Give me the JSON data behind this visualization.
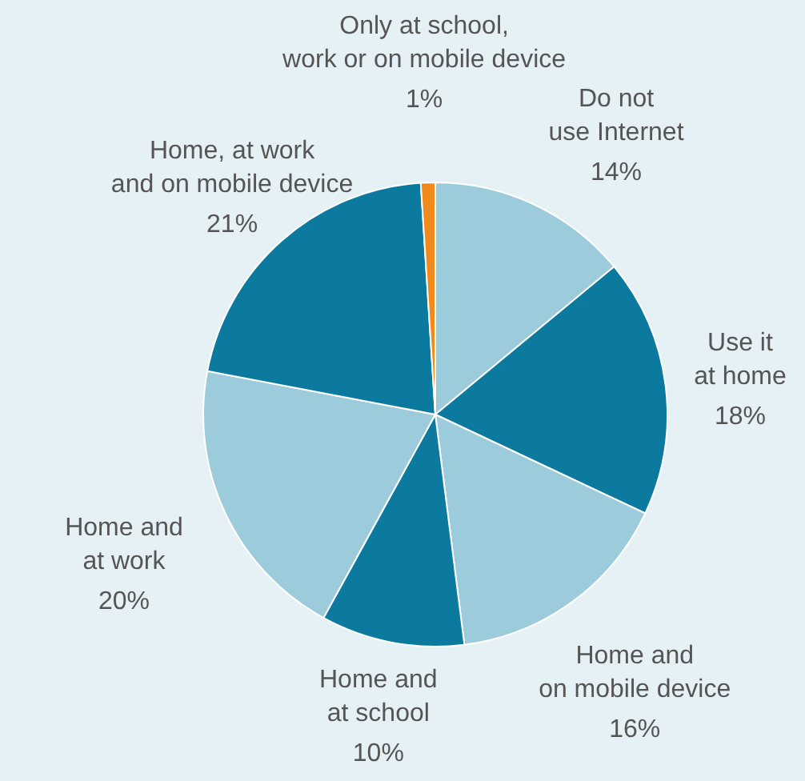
{
  "chart_data": {
    "type": "pie",
    "categories": [
      "Do not\nuse Internet",
      "Use it\nat home",
      "Home and\non mobile device",
      "Home and\nat school",
      "Home and\nat work",
      "Home, at work\nand on mobile device",
      "Only at school,\nwork or on mobile device"
    ],
    "values": [
      14,
      18,
      16,
      10,
      20,
      21,
      1
    ],
    "value_labels": [
      "14%",
      "18%",
      "16%",
      "10%",
      "20%",
      "21%",
      "1%"
    ],
    "colors": [
      "#9ccbdb",
      "#0b7a9e",
      "#9ccbdb",
      "#0b7a9e",
      "#9ccbdb",
      "#0b7a9e",
      "#f08a1c"
    ]
  }
}
